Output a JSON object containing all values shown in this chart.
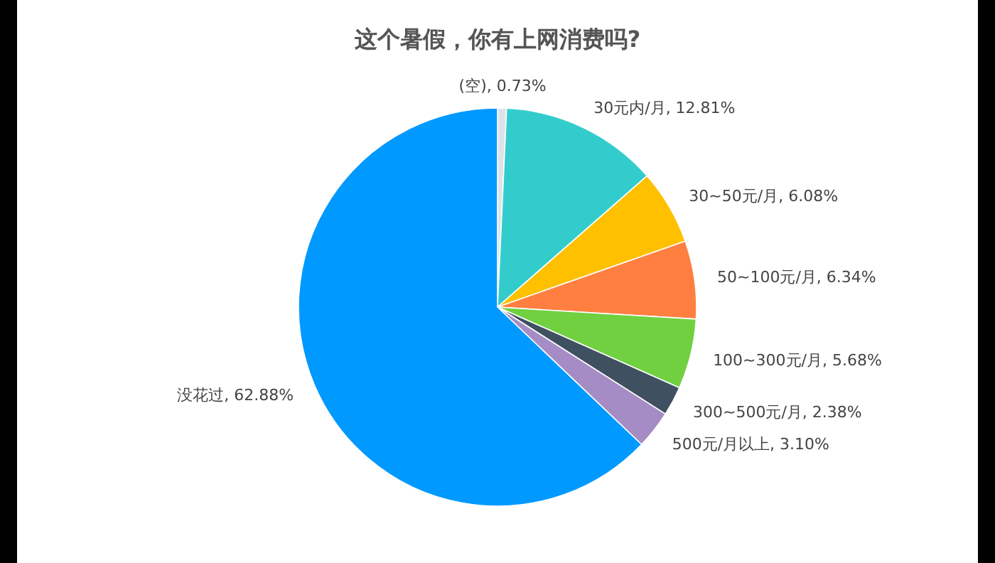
{
  "chart_data": {
    "type": "pie",
    "title": "这个暑假，你有上网消费吗?",
    "categories": [
      "(空)",
      "30元内/月",
      "30~50元/月",
      "50~100元/月",
      "100~300元/月",
      "300~500元/月",
      "500元/月以上",
      "没花过"
    ],
    "values": [
      0.73,
      12.81,
      6.08,
      6.34,
      5.68,
      2.38,
      3.1,
      62.88
    ],
    "value_labels": [
      "0.73%",
      "12.81%",
      "6.08%",
      "6.34%",
      "5.68%",
      "2.38%",
      "3.10%",
      "62.88%"
    ],
    "colors": [
      "#dde3e8",
      "#33cccc",
      "#ffc000",
      "#ff7f41",
      "#70d040",
      "#3f5060",
      "#a68cc4",
      "#0099ff"
    ]
  }
}
